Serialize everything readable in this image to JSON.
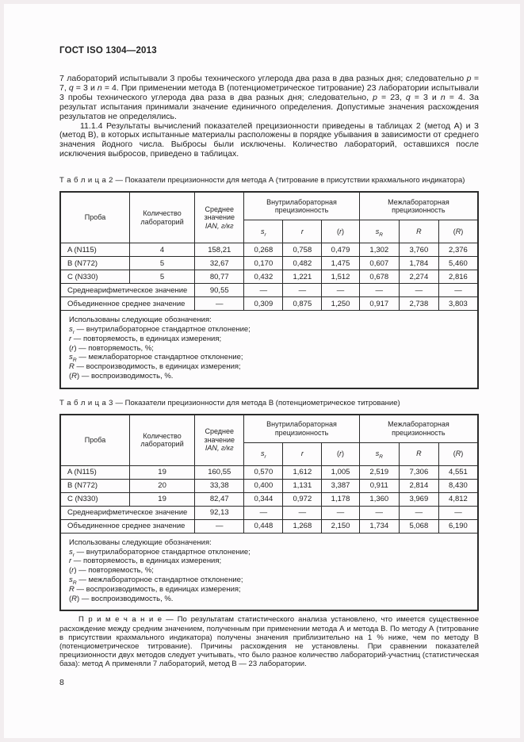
{
  "colors": {
    "text": "#1f1f1f",
    "table_border": "#2b2b2b",
    "page_bg": "#fdfcfd",
    "surround_bg": "#f2edef"
  },
  "page": {
    "header": "ГОСТ ISO 1304—2013",
    "page_number": "8"
  },
  "paragraphs": {
    "p1": {
      "segments": [
        {
          "t": "7 лабораторий испытывали 3 пробы технического углерода два раза в два разных дня; следовательно "
        },
        {
          "t": "p",
          "i": true
        },
        {
          "t": " = 7, "
        },
        {
          "t": "q",
          "i": true
        },
        {
          "t": " = 3 и "
        },
        {
          "t": "n",
          "i": true
        },
        {
          "t": " = 4. При применении метода В (потенциометрическое титрование) 23 лаборатории испытывали 3 пробы технического углерода два раза в два разных дня; следовательно, "
        },
        {
          "t": "p",
          "i": true
        },
        {
          "t": " = 23, "
        },
        {
          "t": "q",
          "i": true
        },
        {
          "t": " = 3 и "
        },
        {
          "t": "n",
          "i": true
        },
        {
          "t": " = 4. За результат испытания принимали значение единичного определения. Допустимые значения расхождения результатов не определялись."
        }
      ]
    },
    "p2": {
      "segments": [
        {
          "t": "11.1.4  Результаты вычислений показателей прецизионности приведены в таблицах 2 (метод А) и 3 (метод В), в которых испытанные материалы расположены в порядке убывания в зависимости от среднего значения йодного числа. Выбросы были исключены. Количество лабораторий, оставшихся после исключения выбросов, приведено в таблицах."
        }
      ]
    }
  },
  "column_header": {
    "probe": "Проба",
    "labs": "Количество лабораторий",
    "mean": [
      {
        "t": "Среднее значение "
      },
      {
        "t": "IAN",
        "i": true
      },
      {
        "t": ", г/кг",
        "i": true
      }
    ],
    "group_within": "Внутрилабораторная прецизионность",
    "group_between": "Межлабораторная прецизионность",
    "subcols": [
      [
        {
          "t": "s",
          "i": true
        },
        {
          "t": "r",
          "i": true,
          "sub": true
        }
      ],
      [
        {
          "t": "r",
          "i": true
        }
      ],
      [
        {
          "t": "("
        },
        {
          "t": "r",
          "i": true
        },
        {
          "t": ")"
        }
      ],
      [
        {
          "t": "s",
          "i": true
        },
        {
          "t": "R",
          "i": true,
          "sub": true
        }
      ],
      [
        {
          "t": "R",
          "i": true
        }
      ],
      [
        {
          "t": "("
        },
        {
          "t": "R",
          "i": true
        },
        {
          "t": ")"
        }
      ]
    ]
  },
  "legend": {
    "lines": [
      [
        {
          "t": "Использованы следующие обозначения:"
        }
      ],
      [
        {
          "t": "s",
          "i": true
        },
        {
          "t": "r",
          "i": true,
          "sub": true
        },
        {
          "t": " — внутрилабораторное стандартное отклонение;"
        }
      ],
      [
        {
          "t": "r",
          "i": true
        },
        {
          "t": " — повторяемость, в единицах измерения;"
        }
      ],
      [
        {
          "t": "("
        },
        {
          "t": "r",
          "i": true
        },
        {
          "t": ") — повторяемость, %;"
        }
      ],
      [
        {
          "t": "s",
          "i": true
        },
        {
          "t": "R",
          "i": true,
          "sub": true
        },
        {
          "t": " — межлабораторное стандартное отклонение;"
        }
      ],
      [
        {
          "t": "R",
          "i": true
        },
        {
          "t": " — воспроизводимость, в единицах измерения;"
        }
      ],
      [
        {
          "t": "("
        },
        {
          "t": "R",
          "i": true
        },
        {
          "t": ") — воспроизводимость, %."
        }
      ]
    ]
  },
  "table2": {
    "caption_label": "Т а б л и ц а   2",
    "caption_rest": " — Показатели прецизионности для метода А (титрование в присутствии крахмального индикатора)",
    "rows": [
      {
        "span2": false,
        "cells": [
          "A (N115)",
          "4",
          "158,21",
          "0,268",
          "0,758",
          "0,479",
          "1,302",
          "3,760",
          "2,376"
        ]
      },
      {
        "span2": false,
        "cells": [
          "B (N772)",
          "5",
          "32,67",
          "0,170",
          "0,482",
          "1,475",
          "0,607",
          "1,784",
          "5,460"
        ]
      },
      {
        "span2": false,
        "cells": [
          "C (N330)",
          "5",
          "80,77",
          "0,432",
          "1,221",
          "1,512",
          "0,678",
          "2,274",
          "2,816"
        ]
      },
      {
        "span2": true,
        "cells": [
          "Среднеарифметическое значение",
          "90,55",
          "—",
          "—",
          "—",
          "—",
          "—",
          "—"
        ]
      },
      {
        "span2": true,
        "cells": [
          "Объединенное среднее значение",
          "—",
          "0,309",
          "0,875",
          "1,250",
          "0,917",
          "2,738",
          "3,803"
        ]
      }
    ]
  },
  "table3": {
    "caption_label": "Т а б л и ц а   3",
    "caption_rest": " — Показатели прецизионности для метода В (потенциометрическое титрование)",
    "rows": [
      {
        "span2": false,
        "cells": [
          "A (N115)",
          "19",
          "160,55",
          "0,570",
          "1,612",
          "1,005",
          "2,519",
          "7,306",
          "4,551"
        ]
      },
      {
        "span2": false,
        "cells": [
          "B (N772)",
          "20",
          "33,38",
          "0,400",
          "1,131",
          "3,387",
          "0,911",
          "2,814",
          "8,430"
        ]
      },
      {
        "span2": false,
        "cells": [
          "C (N330)",
          "19",
          "82,47",
          "0,344",
          "0,972",
          "1,178",
          "1,360",
          "3,969",
          "4,812"
        ]
      },
      {
        "span2": true,
        "cells": [
          "Среднеарифметическое значение",
          "92,13",
          "—",
          "—",
          "—",
          "—",
          "—",
          "—"
        ]
      },
      {
        "span2": true,
        "cells": [
          "Объединенное среднее значение",
          "—",
          "0,448",
          "1,268",
          "2,150",
          "1,734",
          "5,068",
          "6,190"
        ]
      }
    ]
  },
  "note": {
    "label": "П р и м е ч а н и е",
    "segments": [
      {
        "t": " — По результатам статистического анализа установлено, что имеется существенное расхождение между средним значением, полученным при применении метода А и метода В. По методу А (титрование в присутствии крахмального индикатора) получены значения приблизительно на 1 % ниже, чем по методу В (потенциометрическое титрование). Причины расхождения не установлены. При сравнении показателей прецизионности двух методов следует учитывать, что было разное количество лабораторий-участниц (статистическая база): метод А применяли 7 лабораторий, метод В — 23 лаборатории."
      }
    ]
  }
}
